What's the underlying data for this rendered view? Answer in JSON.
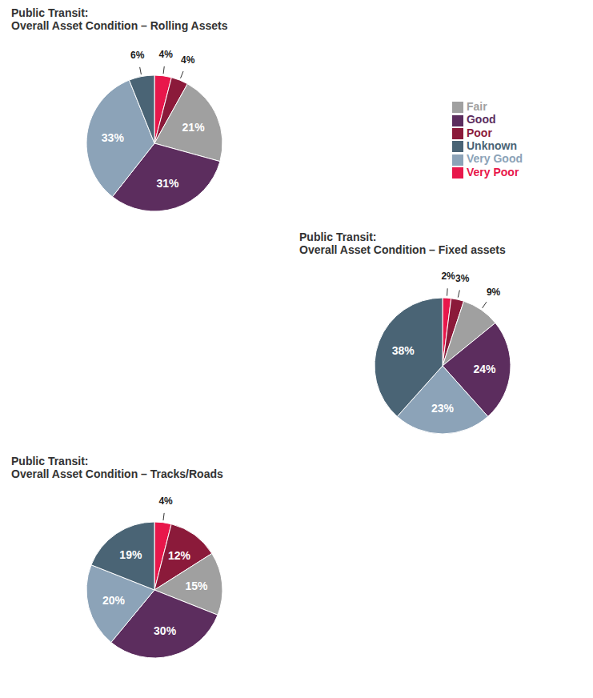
{
  "chart_data": [
    {
      "type": "pie",
      "title": "Public Transit:",
      "subtitle": "Overall Asset Condition – Rolling Assets",
      "categories": [
        "Very Poor",
        "Poor",
        "Fair",
        "Good",
        "Very Good",
        "Unknown"
      ],
      "values": [
        4,
        4,
        21,
        31,
        33,
        6
      ],
      "value_labels": [
        "4%",
        "4%",
        "21%",
        "31%",
        "33%",
        "6%"
      ],
      "colors": [
        "#E8174B",
        "#8B1A3A",
        "#A0A0A0",
        "#5C2D5E",
        "#8CA3B8",
        "#4A6475"
      ],
      "data_labels": true,
      "legend": "right"
    },
    {
      "type": "pie",
      "title": "Public Transit:",
      "subtitle": "Overall Asset Condition – Fixed assets",
      "categories": [
        "Very Poor",
        "Poor",
        "Fair",
        "Good",
        "Very Good",
        "Unknown"
      ],
      "values": [
        2,
        3,
        9,
        24,
        23,
        38
      ],
      "value_labels": [
        "2%",
        "3%",
        "9%",
        "24%",
        "23%",
        "38%"
      ],
      "colors": [
        "#E8174B",
        "#8B1A3A",
        "#A0A0A0",
        "#5C2D5E",
        "#8CA3B8",
        "#4A6475"
      ],
      "data_labels": true
    },
    {
      "type": "pie",
      "title": "Public Transit:",
      "subtitle": "Overall Asset Condition – Tracks/Roads",
      "categories": [
        "Very Poor",
        "Poor",
        "Fair",
        "Good",
        "Very Good",
        "Unknown"
      ],
      "values": [
        4,
        12,
        15,
        30,
        20,
        19
      ],
      "value_labels": [
        "4%",
        "12%",
        "15%",
        "30%",
        "20%",
        "19%"
      ],
      "colors": [
        "#E8174B",
        "#8B1A3A",
        "#A0A0A0",
        "#5C2D5E",
        "#8CA3B8",
        "#4A6475"
      ],
      "data_labels": true
    }
  ]
}
